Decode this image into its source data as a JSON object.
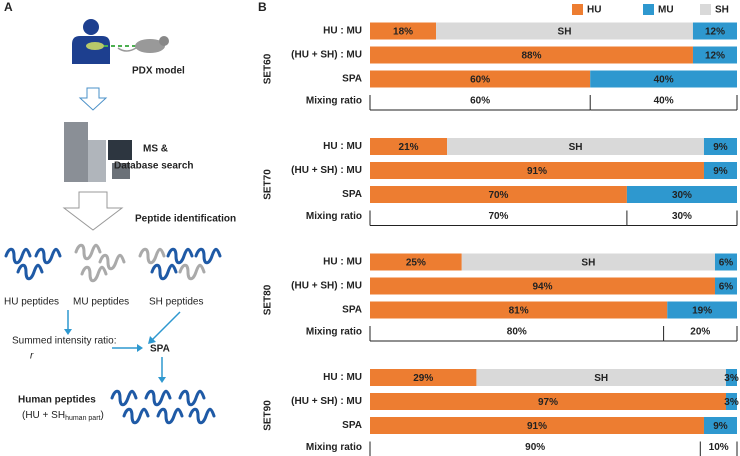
{
  "panel_a": {
    "label": "A",
    "pdx_label": "PDX model",
    "ms_label": [
      "MS &",
      "Database search"
    ],
    "identification_label": "Peptide identification",
    "peptide_groups": [
      "HU peptides",
      "MU peptides",
      "SH peptides"
    ],
    "ratio_label": "Summed intensity ratio:",
    "ratio_symbol": "r",
    "spa_label": "SPA",
    "human_label": "Human peptides",
    "human_sub": [
      "(HU + SH",
      "human part",
      ")"
    ]
  },
  "panel_b_label": "B",
  "chart_data": [
    {
      "type": "bar",
      "orientation": "horizontal",
      "stacked": true,
      "legend": true,
      "title": "SET60",
      "categories": [
        "HU : MU",
        "(HU + SH) : MU",
        "SPA"
      ],
      "xlim": [
        0,
        100
      ],
      "series": [
        {
          "name": "HU",
          "color": "#ed7d31",
          "values": [
            18,
            88,
            60
          ],
          "value_labels": [
            "18%",
            "88%",
            "60%"
          ]
        },
        {
          "name": "MU",
          "color": "#2e98cf",
          "values": [
            12,
            12,
            40
          ],
          "value_labels": [
            "12%",
            "12%",
            "40%"
          ]
        },
        {
          "name": "SH",
          "color": "#d9d9d9",
          "values": [
            70,
            null,
            null
          ]
        }
      ],
      "mixing": {
        "label": "Mixing ratio",
        "values": [
          60,
          40
        ],
        "value_labels": [
          "60%",
          "40%"
        ]
      }
    },
    {
      "type": "bar",
      "orientation": "horizontal",
      "stacked": true,
      "title": "SET70",
      "categories": [
        "HU : MU",
        "(HU + SH) : MU",
        "SPA"
      ],
      "xlim": [
        0,
        100
      ],
      "series": [
        {
          "name": "HU",
          "color": "#ed7d31",
          "values": [
            21,
            91,
            70
          ],
          "value_labels": [
            "21%",
            "91%",
            "70%"
          ]
        },
        {
          "name": "MU",
          "color": "#2e98cf",
          "values": [
            9,
            9,
            30
          ],
          "value_labels": [
            "9%",
            "9%",
            "30%"
          ]
        },
        {
          "name": "SH",
          "color": "#d9d9d9",
          "values": [
            70,
            null,
            null
          ]
        }
      ],
      "mixing": {
        "label": "Mixing ratio",
        "values": [
          70,
          30
        ],
        "value_labels": [
          "70%",
          "30%"
        ]
      }
    },
    {
      "type": "bar",
      "orientation": "horizontal",
      "stacked": true,
      "title": "SET80",
      "categories": [
        "HU : MU",
        "(HU + SH) : MU",
        "SPA"
      ],
      "xlim": [
        0,
        100
      ],
      "series": [
        {
          "name": "HU",
          "color": "#ed7d31",
          "values": [
            25,
            94,
            81
          ],
          "value_labels": [
            "25%",
            "94%",
            "81%"
          ]
        },
        {
          "name": "MU",
          "color": "#2e98cf",
          "values": [
            6,
            6,
            19
          ],
          "value_labels": [
            "6%",
            "6%",
            "19%"
          ]
        },
        {
          "name": "SH",
          "color": "#d9d9d9",
          "values": [
            69,
            null,
            null
          ]
        }
      ],
      "mixing": {
        "label": "Mixing ratio",
        "values": [
          80,
          20
        ],
        "value_labels": [
          "80%",
          "20%"
        ]
      }
    },
    {
      "type": "bar",
      "orientation": "horizontal",
      "stacked": true,
      "title": "SET90",
      "categories": [
        "HU : MU",
        "(HU + SH) : MU",
        "SPA"
      ],
      "xlim": [
        0,
        100
      ],
      "series": [
        {
          "name": "HU",
          "color": "#ed7d31",
          "values": [
            29,
            97,
            91
          ],
          "value_labels": [
            "29%",
            "97%",
            "91%"
          ]
        },
        {
          "name": "MU",
          "color": "#2e98cf",
          "values": [
            3,
            3,
            9
          ],
          "value_labels": [
            "3%",
            "3%",
            "9%"
          ]
        },
        {
          "name": "SH",
          "color": "#d9d9d9",
          "values": [
            68,
            null,
            null
          ]
        }
      ],
      "mixing": {
        "label": "Mixing ratio",
        "values": [
          90,
          10
        ],
        "value_labels": [
          "90%",
          "10%"
        ]
      }
    }
  ]
}
